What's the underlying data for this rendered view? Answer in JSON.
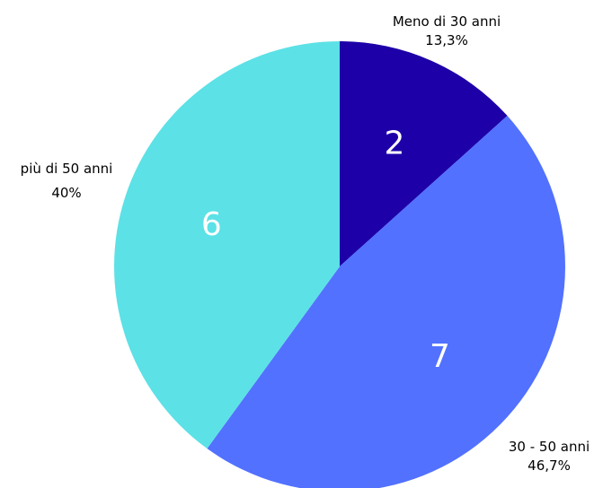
{
  "chart_data": {
    "type": "pie",
    "title": "",
    "slices": [
      {
        "label": "Meno di 30 anni",
        "value": 2,
        "percent_label": "13,3%",
        "color": "#1d00a8"
      },
      {
        "label": "30 - 50 anni",
        "value": 7,
        "percent_label": "46,7%",
        "color": "#5271ff"
      },
      {
        "label": "più di 50 anni",
        "value": 6,
        "percent_label": "40%",
        "color": "#5ce1e6"
      }
    ],
    "legend": "none",
    "start_angle": "12 o'clock, clockwise"
  }
}
